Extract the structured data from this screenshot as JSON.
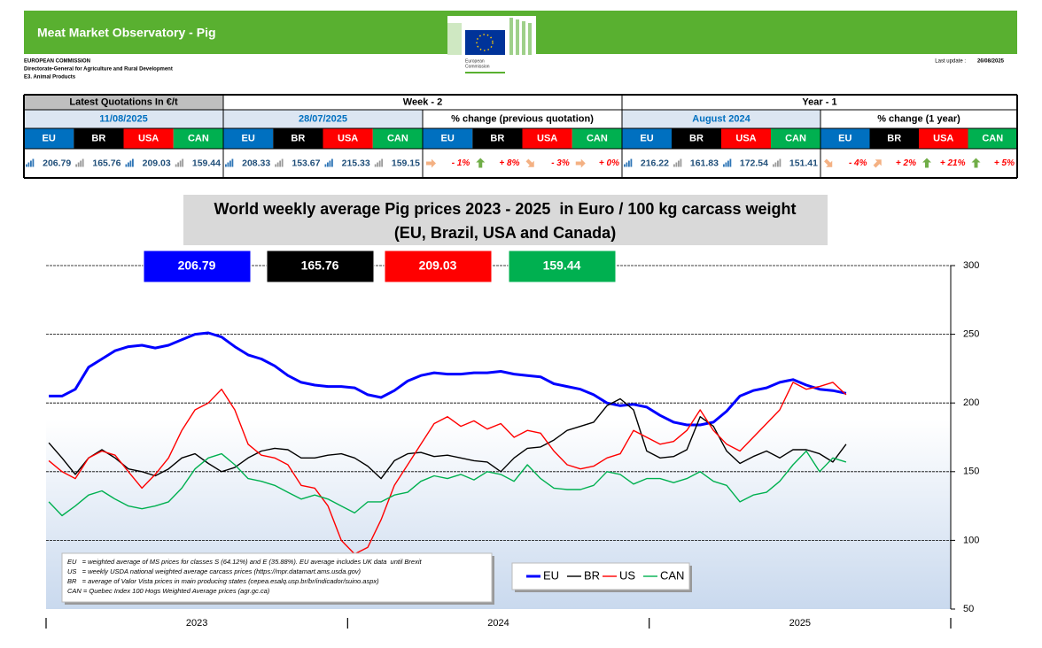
{
  "header": {
    "title": "Meat Market Observatory - Pig",
    "org_lines": [
      "EUROPEAN COMMISSION",
      "Directorate-General for Agriculture and Rural Development",
      "E3. Animal Products"
    ],
    "logo_text": [
      "European",
      "Commission"
    ],
    "last_update_label": "Last update :",
    "last_update": "26/08/2025"
  },
  "table": {
    "groups": [
      "Latest Quotations In €/t",
      "Week - 2",
      "Year - 1"
    ],
    "subheaders": [
      "11/08/2025",
      "28/07/2025",
      "% change (previous quotation)",
      "August 2024",
      "% change (1 year)"
    ],
    "countries": [
      "EU",
      "BR",
      "USA",
      "CAN"
    ],
    "values": [
      "206.79",
      "165.76",
      "209.03",
      "159.44",
      "208.33",
      "153.67",
      "215.33",
      "159.15",
      "- 1%",
      "+ 8%",
      "- 3%",
      "+ 0%",
      "216.22",
      "161.83",
      "172.54",
      "151.41",
      "- 4%",
      "+ 2%",
      "+ 21%",
      "+ 5%"
    ]
  },
  "chart_data": {
    "type": "line",
    "title": "World weekly average Pig prices 2023 - 2025  in Euro / 100 kg carcass weight",
    "subtitle": "(EU, Brazil, USA and Canada)",
    "x": [
      2023.009,
      2023.053,
      2023.097,
      2023.141,
      2023.185,
      2023.229,
      2023.273,
      2023.318,
      2023.362,
      2023.406,
      2023.45,
      2023.494,
      2023.538,
      2023.582,
      2023.626,
      2023.67,
      2023.714,
      2023.758,
      2023.802,
      2023.846,
      2023.891,
      2023.935,
      2023.979,
      2024.023,
      2024.067,
      2024.111,
      2024.155,
      2024.199,
      2024.243,
      2024.287,
      2024.331,
      2024.375,
      2024.419,
      2024.463,
      2024.508,
      2024.552,
      2024.596,
      2024.64,
      2024.684,
      2024.728,
      2024.772,
      2024.816,
      2024.86,
      2024.904,
      2024.948,
      2024.992,
      2025.036,
      2025.081,
      2025.125,
      2025.169,
      2025.213,
      2025.257,
      2025.301,
      2025.345,
      2025.389,
      2025.433,
      2025.477,
      2025.521,
      2025.565,
      2025.609,
      2025.653
    ],
    "xlim": [
      2023,
      2026
    ],
    "xticks": [
      {
        "value": 2023.5,
        "label": "2023"
      },
      {
        "value": 2024.5,
        "label": "2024"
      },
      {
        "value": 2025.5,
        "label": "2025"
      }
    ],
    "xminor": [
      2024,
      2025
    ],
    "ylim": [
      50,
      300
    ],
    "yticks": [
      50,
      100,
      150,
      200,
      250,
      300
    ],
    "grid": true,
    "notes": [
      "EU   = weighted average of MS prices for classes S (64.12%) and E (35.88%). EU average includes UK data  until Brexit",
      "US   = weekly USDA national weighted average carcass prices (https://mpr.datamart.ams.usda.gov)",
      "BR   = average of Valor Vista prices in main producing states (cepea.esalq.usp.br/br/indicador/suino.aspx)",
      "CAN = Quebec Index 100 Hogs Weighted Average prices (agr.gc.ca)"
    ],
    "series": [
      {
        "name": "EU",
        "color": "#0000ff",
        "values": [
          205,
          205,
          210,
          226,
          232,
          238,
          241,
          242,
          240,
          242,
          246,
          250,
          251,
          248,
          241,
          235,
          232,
          227,
          220,
          215,
          213,
          212,
          212,
          211,
          206,
          204,
          209,
          216,
          220,
          222,
          221,
          221,
          222,
          222,
          223,
          221,
          220,
          219,
          214,
          212,
          210,
          206,
          200,
          198,
          199,
          197,
          191,
          186,
          184,
          184,
          186,
          194,
          205,
          209,
          211,
          215,
          217,
          213,
          210,
          209,
          207
        ]
      },
      {
        "name": "BR",
        "color": "#000000",
        "values": [
          171,
          160,
          148,
          160,
          166,
          160,
          152,
          150,
          147,
          152,
          160,
          163,
          156,
          150,
          153,
          160,
          165,
          167,
          166,
          160,
          160,
          162,
          163,
          160,
          154,
          145,
          158,
          163,
          164,
          161,
          162,
          160,
          158,
          157,
          150,
          160,
          167,
          168,
          173,
          180,
          183,
          186,
          198,
          203,
          195,
          165,
          160,
          161,
          166,
          190,
          183,
          165,
          156,
          161,
          165,
          160,
          166,
          166,
          163,
          157,
          170
        ]
      },
      {
        "name": "US",
        "color": "#ff0000",
        "values": [
          158,
          150,
          145,
          160,
          165,
          162,
          150,
          138,
          148,
          160,
          180,
          195,
          200,
          210,
          195,
          170,
          162,
          160,
          155,
          140,
          138,
          125,
          100,
          90,
          95,
          115,
          140,
          155,
          170,
          185,
          190,
          183,
          187,
          181,
          185,
          175,
          180,
          178,
          165,
          155,
          152,
          154,
          160,
          163,
          180,
          175,
          170,
          172,
          180,
          195,
          180,
          170,
          165,
          175,
          185,
          195,
          215,
          210,
          212,
          215,
          206
        ]
      },
      {
        "name": "CAN",
        "color": "#00b050",
        "values": [
          128,
          118,
          125,
          133,
          136,
          130,
          125,
          123,
          125,
          128,
          138,
          152,
          160,
          163,
          155,
          145,
          143,
          140,
          135,
          130,
          133,
          130,
          125,
          120,
          128,
          128,
          133,
          135,
          143,
          147,
          145,
          148,
          144,
          150,
          148,
          143,
          155,
          145,
          138,
          137,
          137,
          140,
          150,
          148,
          141,
          145,
          145,
          142,
          145,
          150,
          143,
          140,
          128,
          133,
          135,
          143,
          155,
          165,
          150,
          160,
          157
        ]
      }
    ]
  }
}
